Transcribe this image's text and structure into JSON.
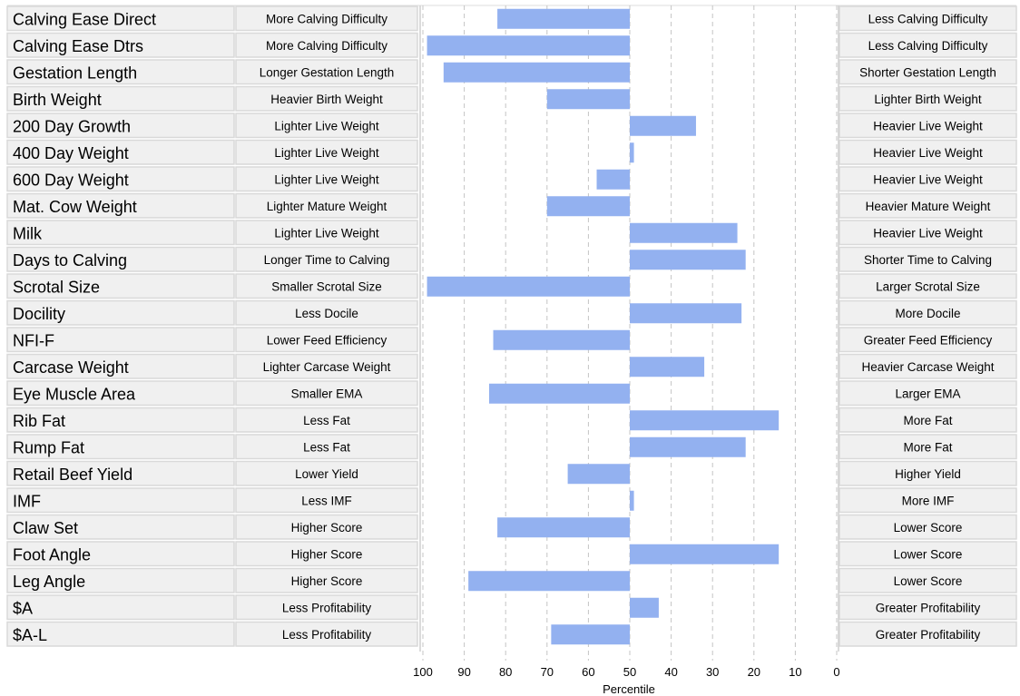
{
  "chart_data": {
    "type": "bar",
    "orientation": "horizontal",
    "xlabel": "Percentile",
    "xlim": [
      100,
      0
    ],
    "x_reversed": true,
    "baseline": 50,
    "grid": true,
    "bar_color": "#93b1f0",
    "xticks": [
      100,
      90,
      80,
      70,
      60,
      50,
      40,
      30,
      20,
      10,
      0
    ],
    "rows": [
      {
        "trait": "Calving Ease Direct",
        "left": "More Calving Difficulty",
        "right": "Less Calving Difficulty",
        "value": 82
      },
      {
        "trait": "Calving Ease Dtrs",
        "left": "More Calving Difficulty",
        "right": "Less Calving Difficulty",
        "value": 99
      },
      {
        "trait": "Gestation Length",
        "left": "Longer Gestation Length",
        "right": "Shorter Gestation Length",
        "value": 95
      },
      {
        "trait": "Birth Weight",
        "left": "Heavier Birth Weight",
        "right": "Lighter Birth Weight",
        "value": 70
      },
      {
        "trait": "200 Day Growth",
        "left": "Lighter Live Weight",
        "right": "Heavier Live Weight",
        "value": 34
      },
      {
        "trait": "400 Day Weight",
        "left": "Lighter Live Weight",
        "right": "Heavier Live Weight",
        "value": 49
      },
      {
        "trait": "600 Day Weight",
        "left": "Lighter Live Weight",
        "right": "Heavier Live Weight",
        "value": 58
      },
      {
        "trait": "Mat. Cow Weight",
        "left": "Lighter Mature Weight",
        "right": "Heavier Mature Weight",
        "value": 70
      },
      {
        "trait": "Milk",
        "left": "Lighter Live Weight",
        "right": "Heavier Live Weight",
        "value": 24
      },
      {
        "trait": "Days to Calving",
        "left": "Longer Time to Calving",
        "right": "Shorter Time to Calving",
        "value": 22
      },
      {
        "trait": "Scrotal Size",
        "left": "Smaller Scrotal Size",
        "right": "Larger Scrotal Size",
        "value": 99
      },
      {
        "trait": "Docility",
        "left": "Less Docile",
        "right": "More Docile",
        "value": 23
      },
      {
        "trait": "NFI-F",
        "left": "Lower Feed Efficiency",
        "right": "Greater Feed Efficiency",
        "value": 83
      },
      {
        "trait": "Carcase Weight",
        "left": "Lighter Carcase Weight",
        "right": "Heavier Carcase Weight",
        "value": 32
      },
      {
        "trait": "Eye Muscle Area",
        "left": "Smaller EMA",
        "right": "Larger EMA",
        "value": 84
      },
      {
        "trait": "Rib Fat",
        "left": "Less Fat",
        "right": "More Fat",
        "value": 14
      },
      {
        "trait": "Rump Fat",
        "left": "Less Fat",
        "right": "More Fat",
        "value": 22
      },
      {
        "trait": "Retail Beef Yield",
        "left": "Lower Yield",
        "right": "Higher Yield",
        "value": 65
      },
      {
        "trait": "IMF",
        "left": "Less IMF",
        "right": "More IMF",
        "value": 49
      },
      {
        "trait": "Claw Set",
        "left": "Higher Score",
        "right": "Lower Score",
        "value": 82
      },
      {
        "trait": "Foot Angle",
        "left": "Higher Score",
        "right": "Lower Score",
        "value": 14
      },
      {
        "trait": "Leg Angle",
        "left": "Higher Score",
        "right": "Lower Score",
        "value": 89
      },
      {
        "trait": "$A",
        "left": "Less Profitability",
        "right": "Greater Profitability",
        "value": 43
      },
      {
        "trait": "$A-L",
        "left": "Less Profitability",
        "right": "Greater Profitability",
        "value": 69
      }
    ]
  }
}
